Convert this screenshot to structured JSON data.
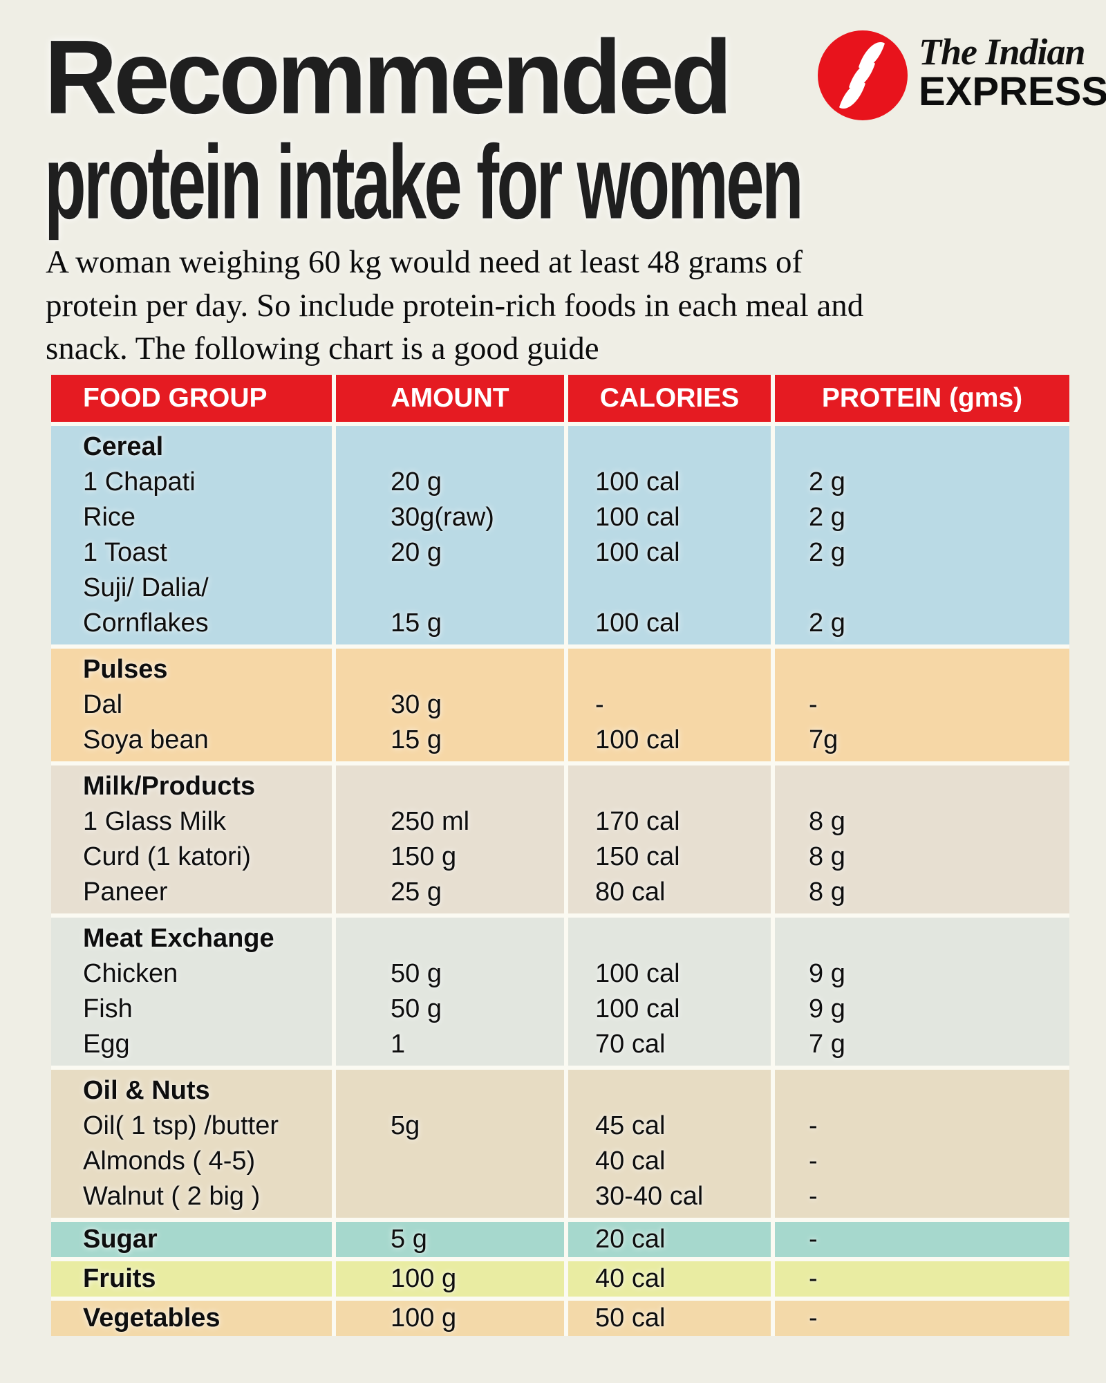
{
  "page": {
    "title_line1": "Recommended",
    "title_line2": "protein intake for women"
  },
  "intro": {
    "lines": [
      "A woman weighing 60 kg would need at least 48 grams of",
      "protein per day. So include protein-rich foods in each meal and",
      "snack. The following chart is a good guide"
    ]
  },
  "logo": {
    "name_top": "The Indian",
    "name_bottom": "EXPRESS",
    "mark": "indian-express-red-circle-with-white-ribbon-s",
    "circle_color": "#e8131c"
  },
  "colors": {
    "page_background": "#efeee5",
    "header_red": "#e51b22",
    "divider": "#fbfaf2",
    "text": "#0e0e0e"
  },
  "chart_data": {
    "type": "table",
    "title": "Recommended protein intake for women",
    "subtitle": "A woman weighing 60 kg would need at least 48 grams of protein per day. So include protein-rich foods in each meal and snack. The following chart is a good guide",
    "columns": [
      "FOOD GROUP",
      "AMOUNT",
      "CALORIES",
      "PROTEIN (gms)"
    ],
    "sections": [
      {
        "id": "cereal",
        "title": "Cereal",
        "bg": "#badae5",
        "title_values": [
          "",
          "",
          ""
        ],
        "rows": [
          [
            "1 Chapati",
            "20 g",
            "100 cal",
            "2 g"
          ],
          [
            "Rice",
            "30g(raw)",
            "100 cal",
            "2 g"
          ],
          [
            "1 Toast",
            "20 g",
            "100 cal",
            "2 g"
          ],
          [
            "Suji/ Dalia/",
            "",
            "",
            ""
          ],
          [
            "Cornflakes",
            "15 g",
            "100 cal",
            "2 g"
          ]
        ]
      },
      {
        "id": "pulses",
        "title": "Pulses",
        "bg": "#f6d7a6",
        "title_values": [
          "",
          "",
          ""
        ],
        "rows": [
          [
            "Dal",
            "30 g",
            "-",
            "-"
          ],
          [
            "Soya bean",
            "15 g",
            "100 cal",
            "7g"
          ]
        ]
      },
      {
        "id": "milk-products",
        "title": "Milk/Products",
        "bg": "#e7dfd1",
        "title_values": [
          "",
          "",
          ""
        ],
        "rows": [
          [
            "1 Glass Milk",
            "250 ml",
            "170 cal",
            "8 g"
          ],
          [
            "Curd (1 katori)",
            "150 g",
            "150 cal",
            "8 g"
          ],
          [
            "Paneer",
            "25 g",
            "80 cal",
            "8 g"
          ]
        ]
      },
      {
        "id": "meat-exchange",
        "title": "Meat Exchange",
        "bg": "#e2e6df",
        "title_values": [
          "",
          "",
          ""
        ],
        "rows": [
          [
            "Chicken",
            "50 g",
            "100 cal",
            "9 g"
          ],
          [
            "Fish",
            "50 g",
            "100 cal",
            "9 g"
          ],
          [
            "Egg",
            "1",
            "70 cal",
            "7 g"
          ]
        ]
      },
      {
        "id": "oil-nuts",
        "title": "Oil & Nuts",
        "bg": "#e7dcc3",
        "title_values": [
          "",
          "",
          ""
        ],
        "rows": [
          [
            "Oil( 1 tsp) /butter",
            "5g",
            "45 cal",
            "-"
          ],
          [
            "Almonds ( 4-5)",
            "",
            "40 cal",
            "-"
          ],
          [
            "Walnut ( 2 big )",
            "",
            "30-40 cal",
            "-"
          ]
        ]
      },
      {
        "id": "sugar",
        "title": "Sugar",
        "bg": "#a6d8cd",
        "title_values": [
          "5 g",
          "20 cal",
          "-"
        ],
        "rows": []
      },
      {
        "id": "fruits",
        "title": "Fruits",
        "bg": "#e9eca2",
        "title_values": [
          "100 g",
          "40 cal",
          "-"
        ],
        "rows": []
      },
      {
        "id": "vegetables",
        "title": "Vegetables",
        "bg": "#f3d9a9",
        "title_values": [
          "100 g",
          "50 cal",
          "-"
        ],
        "rows": []
      }
    ]
  }
}
